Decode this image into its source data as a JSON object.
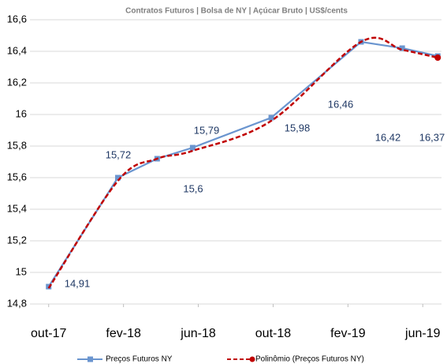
{
  "chart_data": {
    "type": "line",
    "subtitle": "Contratos Futuros | Bolsa de NY | Açúcar Bruto | US$/cents",
    "x": [
      0,
      3.7,
      5.8,
      7.7,
      11.9,
      16.7,
      18.9,
      20.8
    ],
    "xlim": [
      -1,
      21
    ],
    "xticks": [
      {
        "value": 0,
        "label": "out-17"
      },
      {
        "value": 4,
        "label": "fev-18"
      },
      {
        "value": 8,
        "label": "jun-18"
      },
      {
        "value": 12,
        "label": "out-18"
      },
      {
        "value": 16,
        "label": "fev-19"
      },
      {
        "value": 20,
        "label": "jun-19"
      }
    ],
    "ylim": [
      14.8,
      16.6
    ],
    "yticks": [
      {
        "value": 14.8,
        "label": "14,8"
      },
      15,
      {
        "value": 15.2,
        "label": "15,2"
      },
      {
        "value": 15.4,
        "label": "15,4"
      },
      {
        "value": 15.6,
        "label": "15,6"
      },
      {
        "value": 15.8,
        "label": "15,8"
      },
      16,
      {
        "value": 16.2,
        "label": "16,2"
      },
      {
        "value": 16.4,
        "label": "16,4"
      },
      {
        "value": 16.6,
        "label": "16,6"
      }
    ],
    "grid": true,
    "legend": "bottom",
    "series": [
      {
        "name": "Preços Futuros NY",
        "color": "#6a95cf",
        "marker": "square",
        "values": [
          14.91,
          15.6,
          15.72,
          15.79,
          15.98,
          16.46,
          16.42,
          16.37
        ],
        "value_labels": [
          "14,91",
          "15,6",
          "15,72",
          "15,79",
          "15,98",
          "16,46",
          "16,42",
          "16,37"
        ]
      },
      {
        "name": "Polinômio (Preços Futuros NY)",
        "color": "#c00000",
        "dashed": true,
        "marker": "circle",
        "values": [
          14.9,
          15.58,
          15.72,
          15.77,
          15.96,
          16.46,
          16.41,
          16.36
        ]
      }
    ]
  }
}
